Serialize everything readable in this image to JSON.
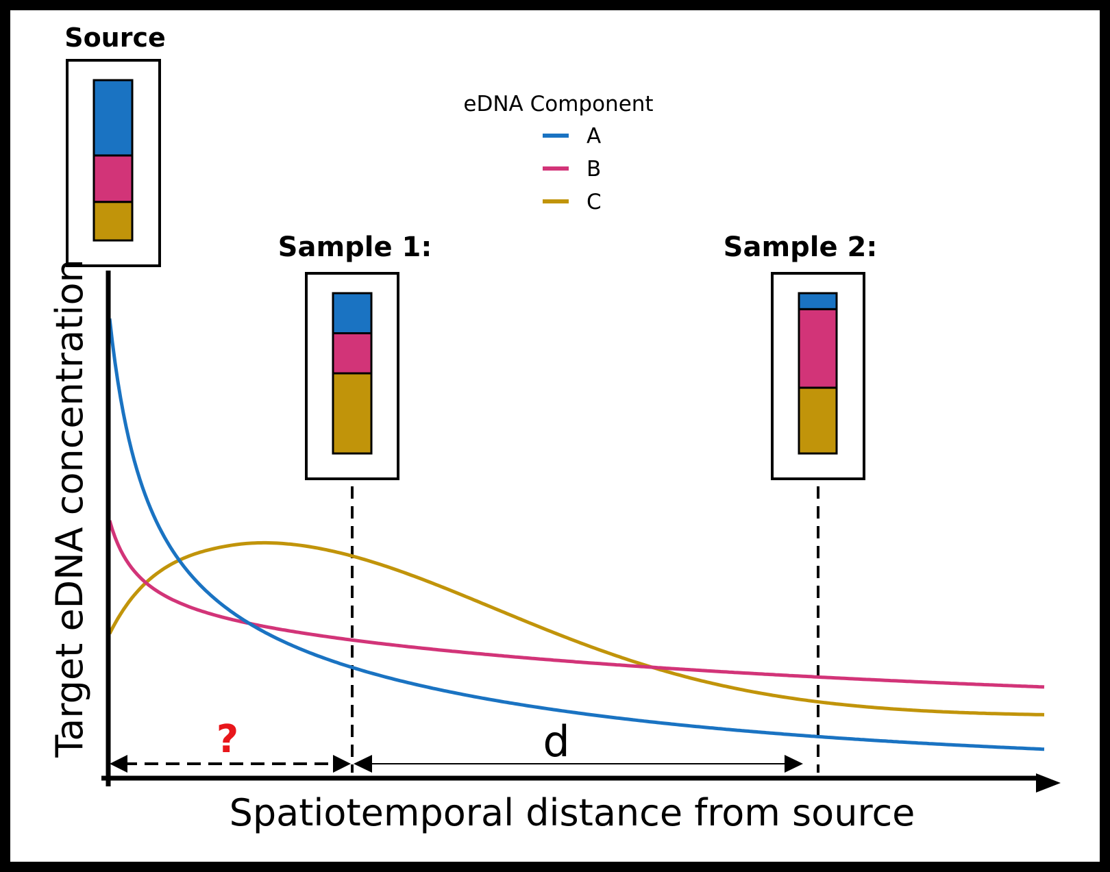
{
  "source_label": "Source",
  "sample1_label": "Sample 1:",
  "sample2_label": "Sample 2:",
  "legend": {
    "title": "eDNA Component",
    "items": [
      {
        "name": "A",
        "color": "#1a73c2"
      },
      {
        "name": "B",
        "color": "#d23478"
      },
      {
        "name": "C",
        "color": "#c1940a"
      }
    ]
  },
  "ylabel": "Target eDNA concentration",
  "xlabel": "Spatiotemporal distance from source",
  "question_mark": "?",
  "distance_label": "d",
  "question_color": "#e8161b",
  "compositions": {
    "source": {
      "A": 0.47,
      "B": 0.29,
      "C": 0.24
    },
    "sample1": {
      "A": 0.25,
      "B": 0.25,
      "C": 0.5
    },
    "sample2": {
      "A": 0.1,
      "B": 0.49,
      "C": 0.41
    }
  }
}
